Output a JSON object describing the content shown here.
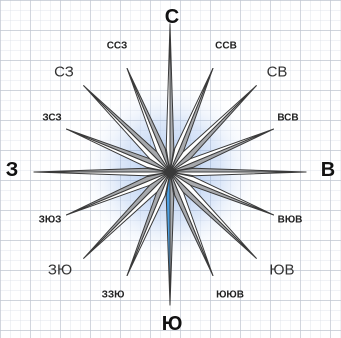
{
  "colors": {
    "grid_fine": "#d9dde6",
    "grid_major": "#c3c8d3",
    "glow": "#5b8fe0",
    "ray_light": "#ffffff",
    "ray_shade": "#a7a9ad",
    "outline": "#3a3a3a",
    "needle_blue": "#4a9ee0"
  },
  "labels": {
    "n": "С",
    "nne": "ССВ",
    "ne": "СВ",
    "ene": "ВСВ",
    "e": "В",
    "ese": "ВЮВ",
    "se": "ЮВ",
    "sse": "ЮЮВ",
    "s": "Ю",
    "ssw": "ЗЗЮ",
    "sw": "ЗЮ",
    "wsw": "ЗЮЗ",
    "w": "З",
    "wnw": "ЗСЗ",
    "nw": "СЗ",
    "nnw": "ССЗ"
  }
}
